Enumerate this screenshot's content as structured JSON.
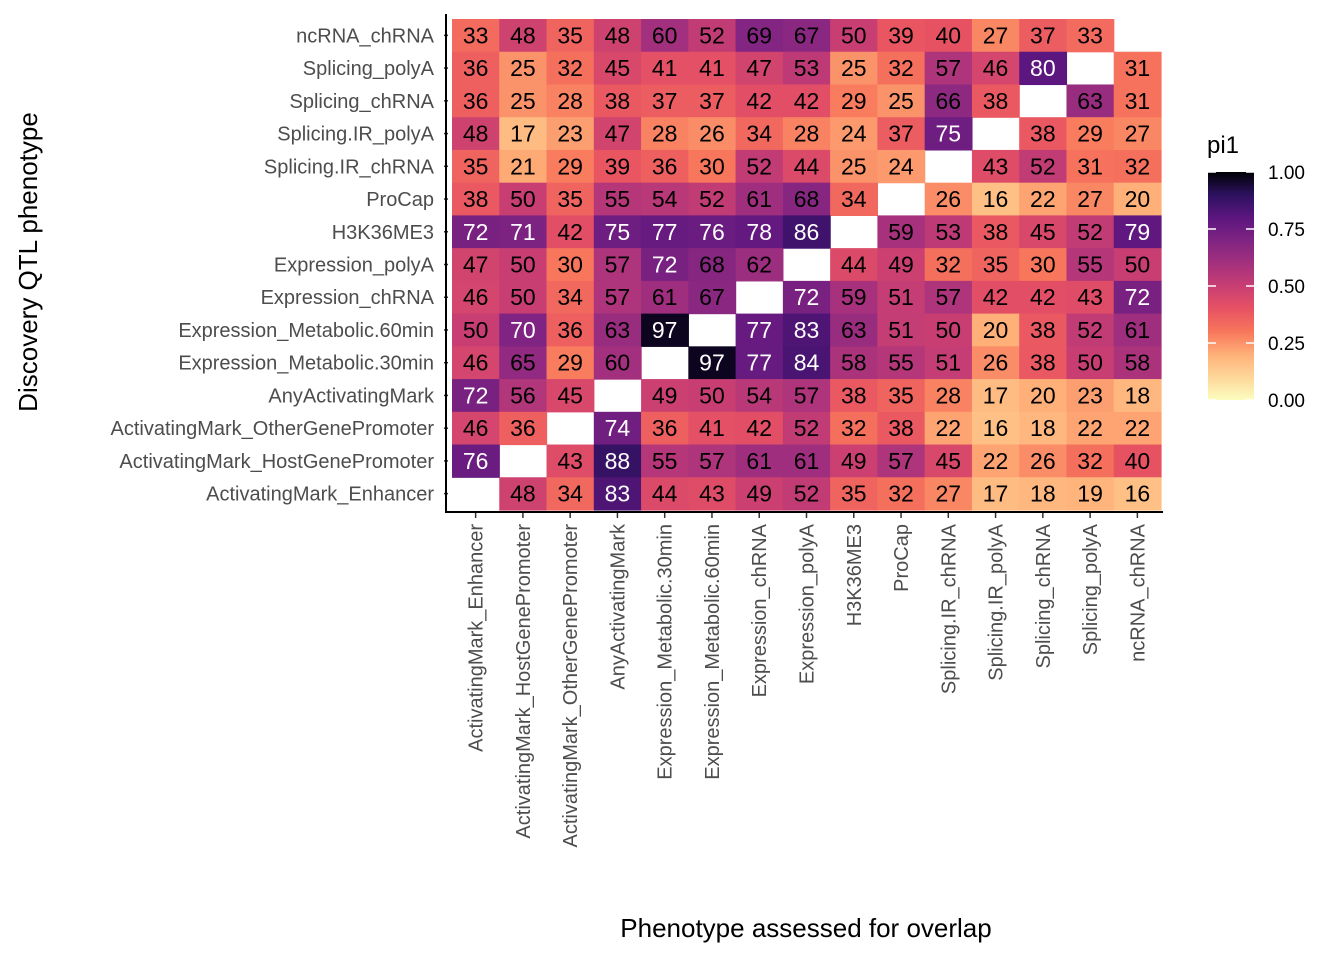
{
  "chart_data": {
    "type": "heatmap",
    "xlabel": "Phenotype assessed for overlap",
    "ylabel": "Discovery QTL phenotype",
    "x_categories": [
      "ActivatingMark_Enhancer",
      "ActivatingMark_HostGenePromoter",
      "ActivatingMark_OtherGenePromoter",
      "AnyActivatingMark",
      "Expression_Metabolic.30min",
      "Expression_Metabolic.60min",
      "Expression_chRNA",
      "Expression_polyA",
      "H3K36ME3",
      "ProCap",
      "Splicing.IR_chRNA",
      "Splicing.IR_polyA",
      "Splicing_chRNA",
      "Splicing_polyA",
      "ncRNA_chRNA"
    ],
    "y_categories": [
      "ncRNA_chRNA",
      "Splicing_polyA",
      "Splicing_chRNA",
      "Splicing.IR_polyA",
      "Splicing.IR_chRNA",
      "ProCap",
      "H3K36ME3",
      "Expression_polyA",
      "Expression_chRNA",
      "Expression_Metabolic.60min",
      "Expression_Metabolic.30min",
      "AnyActivatingMark",
      "ActivatingMark_OtherGenePromoter",
      "ActivatingMark_HostGenePromoter",
      "ActivatingMark_Enhancer"
    ],
    "values": [
      [
        33,
        48,
        35,
        48,
        60,
        52,
        69,
        67,
        50,
        39,
        40,
        27,
        37,
        33,
        null
      ],
      [
        36,
        25,
        32,
        45,
        41,
        41,
        47,
        53,
        25,
        32,
        57,
        46,
        80,
        null,
        31
      ],
      [
        36,
        25,
        28,
        38,
        37,
        37,
        42,
        42,
        29,
        25,
        66,
        38,
        null,
        63,
        31
      ],
      [
        48,
        17,
        23,
        47,
        28,
        26,
        34,
        28,
        24,
        37,
        75,
        null,
        38,
        29,
        27
      ],
      [
        35,
        21,
        29,
        39,
        36,
        30,
        52,
        44,
        25,
        24,
        null,
        43,
        52,
        31,
        32
      ],
      [
        38,
        50,
        35,
        55,
        54,
        52,
        61,
        68,
        34,
        null,
        26,
        16,
        22,
        27,
        20
      ],
      [
        72,
        71,
        42,
        75,
        77,
        76,
        78,
        86,
        null,
        59,
        53,
        38,
        45,
        52,
        79
      ],
      [
        47,
        50,
        30,
        57,
        72,
        68,
        62,
        null,
        44,
        49,
        32,
        35,
        30,
        55,
        50
      ],
      [
        46,
        50,
        34,
        57,
        61,
        67,
        null,
        72,
        59,
        51,
        57,
        42,
        42,
        43,
        72
      ],
      [
        50,
        70,
        36,
        63,
        97,
        null,
        77,
        83,
        63,
        51,
        50,
        20,
        38,
        52,
        61
      ],
      [
        46,
        65,
        29,
        60,
        null,
        97,
        77,
        84,
        58,
        55,
        51,
        26,
        38,
        50,
        58
      ],
      [
        72,
        56,
        45,
        null,
        49,
        50,
        54,
        57,
        38,
        35,
        28,
        17,
        20,
        23,
        18
      ],
      [
        46,
        36,
        null,
        74,
        36,
        41,
        42,
        52,
        32,
        38,
        22,
        16,
        18,
        22,
        22
      ],
      [
        76,
        null,
        43,
        88,
        55,
        57,
        61,
        61,
        49,
        57,
        45,
        22,
        26,
        32,
        40
      ],
      [
        null,
        48,
        34,
        83,
        44,
        43,
        49,
        52,
        35,
        32,
        27,
        17,
        18,
        19,
        16
      ]
    ],
    "value_scale": "percent",
    "legend": {
      "title": "pi1",
      "range": [
        0,
        1
      ],
      "ticks": [
        "0.00",
        "0.25",
        "0.50",
        "0.75",
        "1.00"
      ],
      "position": "right",
      "colormap": "magma"
    },
    "grid": false
  }
}
